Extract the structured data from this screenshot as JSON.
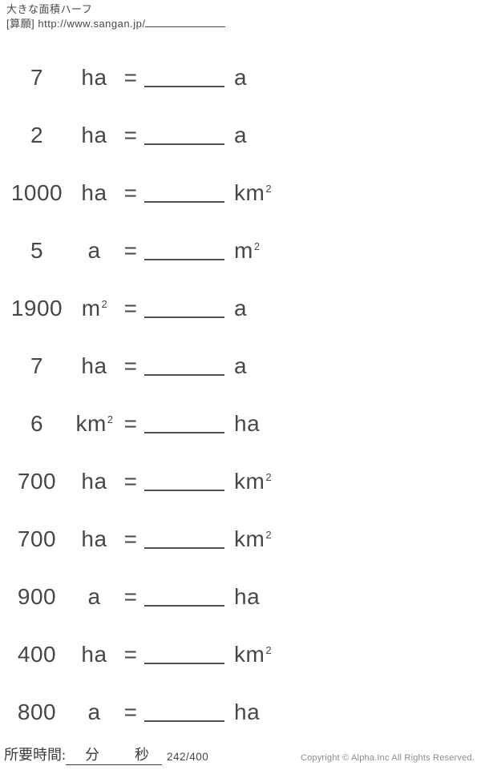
{
  "header": {
    "title": "大きな面積ハーフ",
    "source_prefix": "[算願]",
    "source_url": "http://www.sangan.jp/"
  },
  "equals_sign": "=",
  "problems": [
    {
      "value": "7",
      "from": "ha",
      "from_sup": "",
      "to": "a",
      "to_sup": ""
    },
    {
      "value": "2",
      "from": "ha",
      "from_sup": "",
      "to": "a",
      "to_sup": ""
    },
    {
      "value": "1000",
      "from": "ha",
      "from_sup": "",
      "to": "km",
      "to_sup": "2"
    },
    {
      "value": "5",
      "from": "a",
      "from_sup": "",
      "to": "m",
      "to_sup": "2"
    },
    {
      "value": "1900",
      "from": "m",
      "from_sup": "2",
      "to": "a",
      "to_sup": ""
    },
    {
      "value": "7",
      "from": "ha",
      "from_sup": "",
      "to": "a",
      "to_sup": ""
    },
    {
      "value": "6",
      "from": "km",
      "from_sup": "2",
      "to": "ha",
      "to_sup": ""
    },
    {
      "value": "700",
      "from": "ha",
      "from_sup": "",
      "to": "km",
      "to_sup": "2"
    },
    {
      "value": "700",
      "from": "ha",
      "from_sup": "",
      "to": "km",
      "to_sup": "2"
    },
    {
      "value": "900",
      "from": "a",
      "from_sup": "",
      "to": "ha",
      "to_sup": ""
    },
    {
      "value": "400",
      "from": "ha",
      "from_sup": "",
      "to": "km",
      "to_sup": "2"
    },
    {
      "value": "800",
      "from": "a",
      "from_sup": "",
      "to": "ha",
      "to_sup": ""
    }
  ],
  "footer": {
    "time_label": "所要時間:",
    "minutes_label": "分",
    "seconds_label": "秒",
    "page_indicator": "242/400",
    "copyright": "Copyright © Alpha.Inc All Rights Reserved."
  },
  "colors": {
    "text": "#4a4646",
    "line": "#544f4f",
    "copyright": "#8c8c8c"
  }
}
